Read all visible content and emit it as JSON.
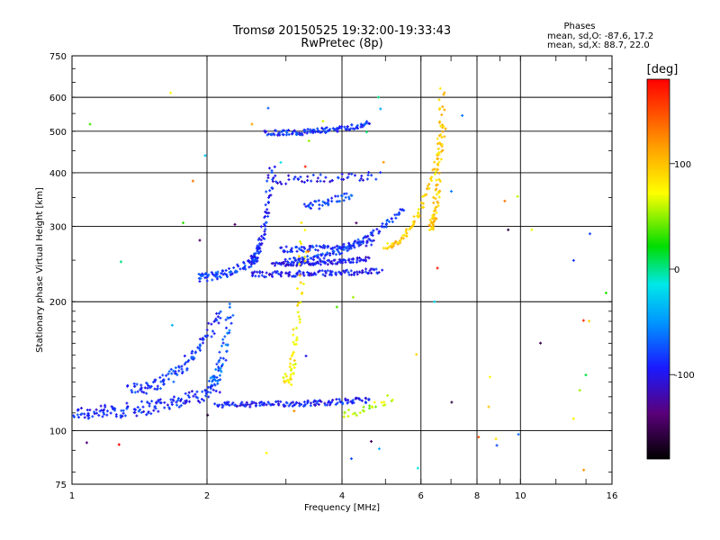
{
  "chart_data": {
    "type": "scatter",
    "title": "Tromsø 20150525 19:32:00-19:33:43",
    "subtitle": "RwPretec (8p)",
    "xlabel": "Frequency [MHz]",
    "ylabel": "Stationary phase Virtual Height [km]",
    "xscale": "log",
    "yscale": "log",
    "xlim": [
      1,
      16
    ],
    "ylim": [
      75,
      750
    ],
    "x_ticks": [
      1,
      2,
      4,
      6,
      8,
      10,
      16
    ],
    "x_tick_labels": [
      "1",
      "2",
      "4",
      "6",
      "8",
      "10",
      "16"
    ],
    "y_ticks": [
      75,
      100,
      200,
      300,
      400,
      500,
      600,
      750
    ],
    "y_tick_labels": [
      "75",
      "100",
      "200",
      "300",
      "400",
      "500",
      "600",
      "750"
    ],
    "x_gridlines": [
      2,
      4,
      6,
      8,
      10
    ],
    "y_gridlines": [
      100,
      200,
      300,
      400,
      500,
      600
    ],
    "grid": true,
    "phase_header": "Phases",
    "phase_stats": [
      "mean, sd,O:  -87.6, 17.2",
      "mean, sd,X:  88.7, 22.0"
    ],
    "colorbar": {
      "label": "[deg]",
      "ticks": [
        100,
        0,
        -100
      ],
      "tick_labels": [
        "100",
        "0",
        "-100"
      ],
      "range": [
        -180,
        180
      ],
      "position": "right"
    },
    "traces": [
      {
        "description_only_for_render": false,
        "phase": -90,
        "x_range": [
          1.0,
          2.1
        ],
        "y_range": [
          110,
          125
        ],
        "n": 150,
        "spread": 0.05
      },
      {
        "phase": -85,
        "x_range": [
          1.35,
          2.15
        ],
        "y_range": [
          125,
          190
        ],
        "n": 110,
        "spread": 0.04
      },
      {
        "phase": -70,
        "x_range": [
          2.05,
          2.25
        ],
        "y_range": [
          130,
          195
        ],
        "n": 60,
        "spread": 0.04
      },
      {
        "phase": -92,
        "x_range": [
          2.1,
          4.6
        ],
        "y_range": [
          115,
          118
        ],
        "n": 140,
        "spread": 0.02
      },
      {
        "phase": -80,
        "x_range": [
          1.9,
          2.6
        ],
        "y_range": [
          228,
          255
        ],
        "n": 80,
        "spread": 0.03
      },
      {
        "phase": -95,
        "x_range": [
          2.5,
          4.9
        ],
        "y_range": [
          232,
          236
        ],
        "n": 110,
        "spread": 0.02
      },
      {
        "phase": -100,
        "x_range": [
          2.8,
          4.6
        ],
        "y_range": [
          245,
          252
        ],
        "n": 100,
        "spread": 0.015
      },
      {
        "phase": -90,
        "x_range": [
          2.9,
          4.7
        ],
        "y_range": [
          265,
          275
        ],
        "n": 80,
        "spread": 0.02
      },
      {
        "phase": -85,
        "x_range": [
          3.0,
          5.5
        ],
        "y_range": [
          250,
          330
        ],
        "n": 110,
        "spread": 0.02
      },
      {
        "phase": -90,
        "x_range": [
          2.5,
          2.8
        ],
        "y_range": [
          250,
          420
        ],
        "n": 80,
        "spread": 0.03
      },
      {
        "phase": -88,
        "x_range": [
          2.7,
          4.6
        ],
        "y_range": [
          495,
          520
        ],
        "n": 120,
        "spread": 0.02
      },
      {
        "phase": -95,
        "x_range": [
          2.75,
          4.8
        ],
        "y_range": [
          385,
          395
        ],
        "n": 50,
        "spread": 0.03
      },
      {
        "phase": -80,
        "x_range": [
          3.3,
          4.2
        ],
        "y_range": [
          335,
          360
        ],
        "n": 40,
        "spread": 0.03
      },
      {
        "phase": 95,
        "x_range": [
          5.0,
          6.8
        ],
        "y_range": [
          270,
          520
        ],
        "n": 80,
        "spread": 0.02
      },
      {
        "phase": 95,
        "x_range": [
          6.3,
          6.7
        ],
        "y_range": [
          300,
          620
        ],
        "n": 90,
        "spread": 0.03
      },
      {
        "phase": 80,
        "x_range": [
          3.0,
          3.3
        ],
        "y_range": [
          130,
          300
        ],
        "n": 60,
        "spread": 0.04
      },
      {
        "phase": 60,
        "x_range": [
          4.0,
          5.2
        ],
        "y_range": [
          110,
          120
        ],
        "n": 25,
        "spread": 0.03
      },
      {
        "phase": 10,
        "x_range": [
          1.0,
          16.0
        ],
        "y_range": [
          80,
          700
        ],
        "n": 60,
        "spread": 0.0
      }
    ]
  }
}
